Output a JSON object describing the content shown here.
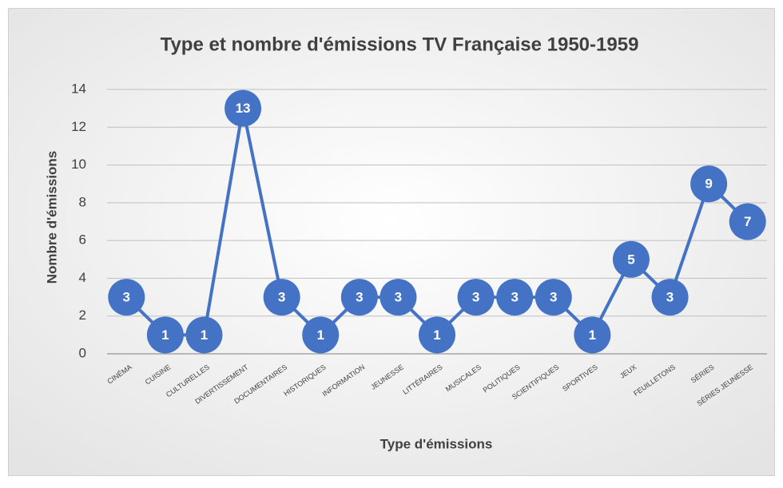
{
  "chart_data": {
    "type": "line",
    "title": "Type et nombre d'émissions TV Française 1950-1959",
    "x_label": "Type d'émissions",
    "y_label": "Nombre d'émissions",
    "categories": [
      "CINÉMA",
      "CUISINE",
      "CULTURELLES",
      "DIVERTISSEMENT",
      "DOCUMENTAIRES",
      "HISTORIQUES",
      "INFORMATION",
      "JEUNESSE",
      "LITTÉRAIRES",
      "MUSICALES",
      "POLITIQUES",
      "SCIENTIFIQUES",
      "SPORTIVES",
      "JEUX",
      "FEUILLETONS",
      "SÉRIES",
      "SÉRIES JEUNESSE"
    ],
    "series": [
      {
        "name": "Nombre d'émissions",
        "color": "#4472c4",
        "values": [
          3,
          1,
          1,
          13,
          3,
          1,
          3,
          3,
          1,
          3,
          3,
          3,
          1,
          5,
          3,
          9,
          7
        ]
      }
    ],
    "ylim": [
      0,
      14
    ],
    "yticks": [
      0,
      2,
      4,
      6,
      8,
      10,
      12,
      14
    ],
    "grid": true,
    "data_labels": true
  }
}
